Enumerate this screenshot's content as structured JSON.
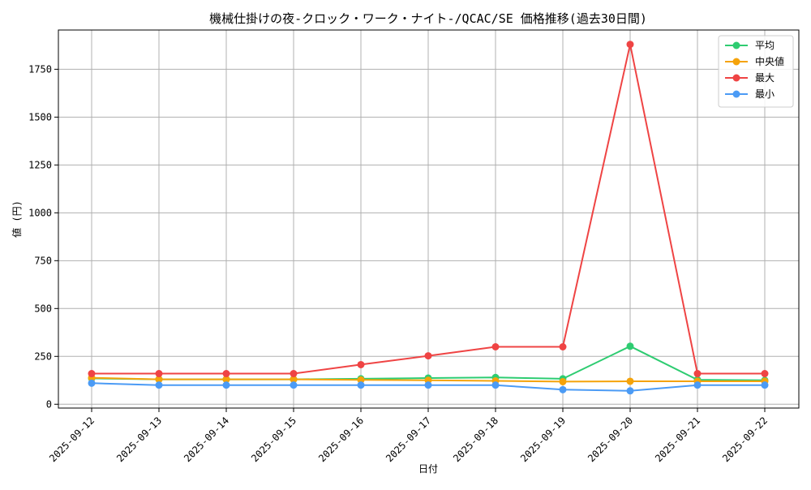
{
  "chart_data": {
    "type": "line",
    "title": "機械仕掛けの夜-クロック・ワーク・ナイト-/QCAC/SE 価格推移(過去30日間)",
    "xlabel": "日付",
    "ylabel": "値 (円)",
    "categories": [
      "2025-09-12",
      "2025-09-13",
      "2025-09-14",
      "2025-09-15",
      "2025-09-16",
      "2025-09-17",
      "2025-09-18",
      "2025-09-19",
      "2025-09-20",
      "2025-09-21",
      "2025-09-22"
    ],
    "ylim": [
      -20,
      1955
    ],
    "yticks": [
      0,
      250,
      500,
      750,
      1000,
      1250,
      1500,
      1750
    ],
    "grid": true,
    "legend_position": "top-right",
    "series": [
      {
        "name": "平均",
        "color": "#2ecc71",
        "values": [
          135,
          130,
          130,
          130,
          133,
          137,
          140,
          133,
          303,
          128,
          125
        ]
      },
      {
        "name": "中央値",
        "color": "#f5a30a",
        "values": [
          138,
          130,
          130,
          130,
          127,
          125,
          122,
          118,
          120,
          120,
          120
        ]
      },
      {
        "name": "最大",
        "color": "#ef4444",
        "values": [
          160,
          160,
          160,
          160,
          207,
          253,
          300,
          300,
          1880,
          160,
          160
        ]
      },
      {
        "name": "最小",
        "color": "#4b9bf5",
        "values": [
          110,
          100,
          100,
          100,
          100,
          100,
          100,
          76,
          70,
          100,
          100
        ]
      }
    ]
  }
}
